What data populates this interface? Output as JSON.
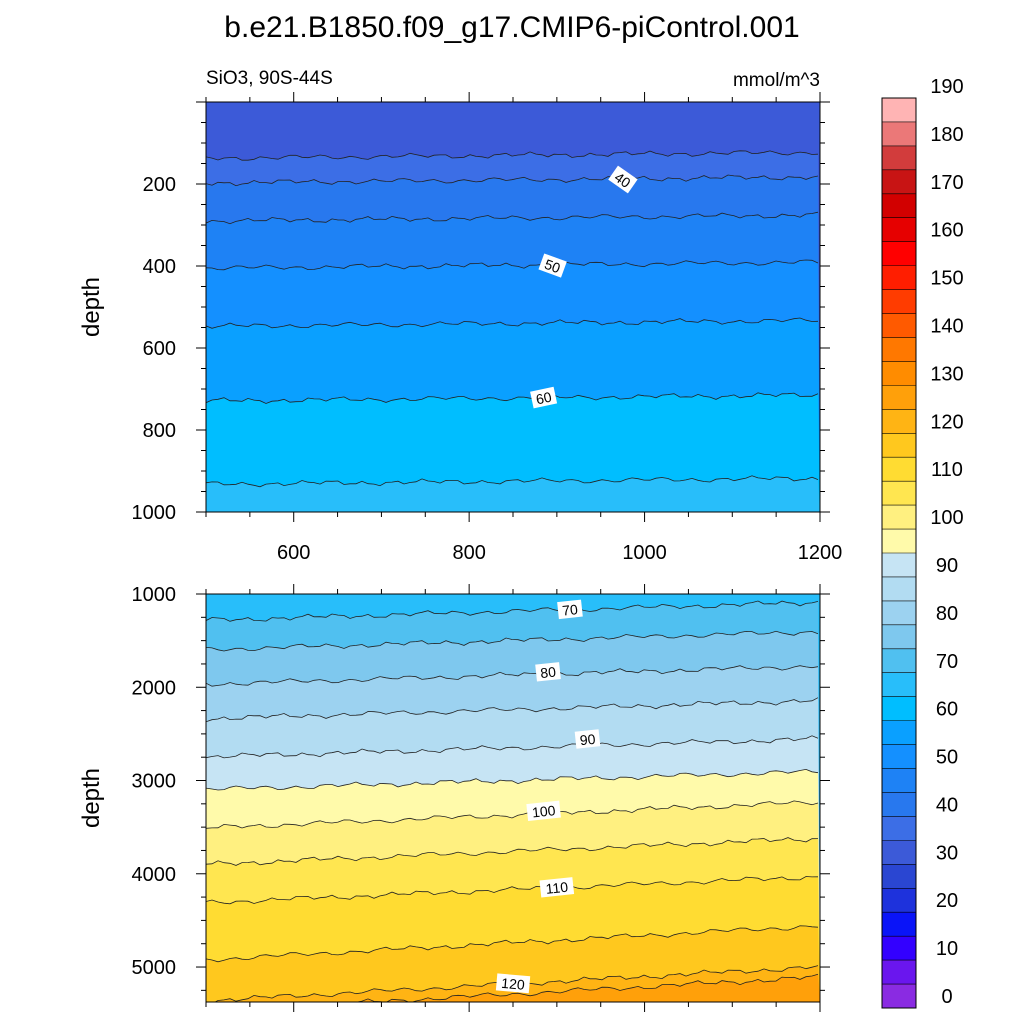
{
  "figure": {
    "title": "b.e21.B1850.f09_g17.CMIP6-piControl.001",
    "variable_label": "SiO3, 90S-44S",
    "units_label": "mmol/m^3"
  },
  "chart_data": [
    {
      "type": "contour",
      "panel": "upper",
      "xlabel": "",
      "ylabel": "depth",
      "xlim": [
        500,
        1200
      ],
      "ylim": [
        0,
        1000
      ],
      "y_inverted": true,
      "x_ticks": [
        600,
        800,
        1000,
        1200
      ],
      "y_ticks": [
        200,
        400,
        600,
        800,
        1000
      ],
      "contour_level_depths": [
        {
          "level": 35,
          "depth": 130
        },
        {
          "level": 40,
          "depth": 190
        },
        {
          "level": 45,
          "depth": 283
        },
        {
          "level": 50,
          "depth": 398
        },
        {
          "level": 55,
          "depth": 540
        },
        {
          "level": 60,
          "depth": 722
        },
        {
          "level": 65,
          "depth": 925
        }
      ],
      "contour_labels": [
        {
          "text": "40",
          "x": 975,
          "depth": 190
        },
        {
          "text": "50",
          "x": 895,
          "depth": 400
        },
        {
          "text": "60",
          "x": 885,
          "depth": 722
        }
      ],
      "top_fill_level": 30
    },
    {
      "type": "contour",
      "panel": "lower",
      "xlabel": "",
      "ylabel": "depth",
      "xlim": [
        500,
        1200
      ],
      "ylim": [
        1000,
        5375
      ],
      "y_inverted": true,
      "x_ticks": [
        600,
        800,
        1000,
        1200
      ],
      "y_ticks": [
        1000,
        2000,
        3000,
        4000,
        5000
      ],
      "contour_level_depths": [
        {
          "level": 70,
          "depth": 1185
        },
        {
          "level": 75,
          "depth": 1500
        },
        {
          "level": 80,
          "depth": 1870
        },
        {
          "level": 85,
          "depth": 2240
        },
        {
          "level": 90,
          "depth": 2650
        },
        {
          "level": 95,
          "depth": 3000
        },
        {
          "level": 100,
          "depth": 3370
        },
        {
          "level": 105,
          "depth": 3760
        },
        {
          "level": 110,
          "depth": 4170
        },
        {
          "level": 115,
          "depth": 4740
        },
        {
          "level": 120,
          "depth": 5180
        },
        {
          "level": 125,
          "depth": 5290
        }
      ],
      "contour_labels": [
        {
          "text": "70",
          "x": 915,
          "depth": 1170
        },
        {
          "text": "80",
          "x": 890,
          "depth": 1840
        },
        {
          "text": "90",
          "x": 935,
          "depth": 2560
        },
        {
          "text": "100",
          "x": 885,
          "depth": 3330
        },
        {
          "text": "110",
          "x": 900,
          "depth": 4150
        },
        {
          "text": "120",
          "x": 850,
          "depth": 5180
        }
      ],
      "top_fill_level": 65
    }
  ],
  "colorbar": {
    "labels": [
      {
        "value": 0,
        "text": "0"
      },
      {
        "value": 10,
        "text": "10"
      },
      {
        "value": 20,
        "text": "20"
      },
      {
        "value": 30,
        "text": "30"
      },
      {
        "value": 40,
        "text": "40"
      },
      {
        "value": 50,
        "text": "50"
      },
      {
        "value": 60,
        "text": "60"
      },
      {
        "value": 70,
        "text": "70"
      },
      {
        "value": 80,
        "text": "80"
      },
      {
        "value": 90,
        "text": "90"
      },
      {
        "value": 100,
        "text": "100"
      },
      {
        "value": 110,
        "text": "110"
      },
      {
        "value": 120,
        "text": "120"
      },
      {
        "value": 130,
        "text": "130"
      },
      {
        "value": 140,
        "text": "140"
      },
      {
        "value": 150,
        "text": "150"
      },
      {
        "value": 160,
        "text": "160"
      },
      {
        "value": 170,
        "text": "170"
      },
      {
        "value": 180,
        "text": "180"
      },
      {
        "value": 190,
        "text": "190"
      }
    ],
    "bins": [
      {
        "value": 0,
        "color": "#8A2BE2"
      },
      {
        "value": 5,
        "color": "#6A16EE"
      },
      {
        "value": 10,
        "color": "#3300FF"
      },
      {
        "value": 15,
        "color": "#0A14F8"
      },
      {
        "value": 20,
        "color": "#1E32DC"
      },
      {
        "value": 25,
        "color": "#2A46D2"
      },
      {
        "value": 30,
        "color": "#3C5AD8"
      },
      {
        "value": 35,
        "color": "#3C6EE6"
      },
      {
        "value": 40,
        "color": "#2878EE"
      },
      {
        "value": 45,
        "color": "#1E82F5"
      },
      {
        "value": 50,
        "color": "#1490FF"
      },
      {
        "value": 55,
        "color": "#0AA0FF"
      },
      {
        "value": 60,
        "color": "#00BEFF"
      },
      {
        "value": 65,
        "color": "#28BEFA"
      },
      {
        "value": 70,
        "color": "#50C0F0"
      },
      {
        "value": 75,
        "color": "#7EC8EE"
      },
      {
        "value": 80,
        "color": "#9CD2F0"
      },
      {
        "value": 85,
        "color": "#B2DCF2"
      },
      {
        "value": 90,
        "color": "#C6E4F4"
      },
      {
        "value": 95,
        "color": "#FFFAAA"
      },
      {
        "value": 100,
        "color": "#FFF080"
      },
      {
        "value": 105,
        "color": "#FFE650"
      },
      {
        "value": 110,
        "color": "#FFDC32"
      },
      {
        "value": 115,
        "color": "#FFC81E"
      },
      {
        "value": 120,
        "color": "#FFB414"
      },
      {
        "value": 125,
        "color": "#FFA00A"
      },
      {
        "value": 130,
        "color": "#FF8C00"
      },
      {
        "value": 135,
        "color": "#FF7800"
      },
      {
        "value": 140,
        "color": "#FF5A00"
      },
      {
        "value": 145,
        "color": "#FF3C00"
      },
      {
        "value": 150,
        "color": "#FF1E00"
      },
      {
        "value": 155,
        "color": "#FF0000"
      },
      {
        "value": 160,
        "color": "#E60000"
      },
      {
        "value": 165,
        "color": "#D20000"
      },
      {
        "value": 170,
        "color": "#C81414"
      },
      {
        "value": 175,
        "color": "#D23C3C"
      },
      {
        "value": 180,
        "color": "#EB7878"
      },
      {
        "value": 185,
        "color": "#FFB4B4"
      }
    ]
  }
}
